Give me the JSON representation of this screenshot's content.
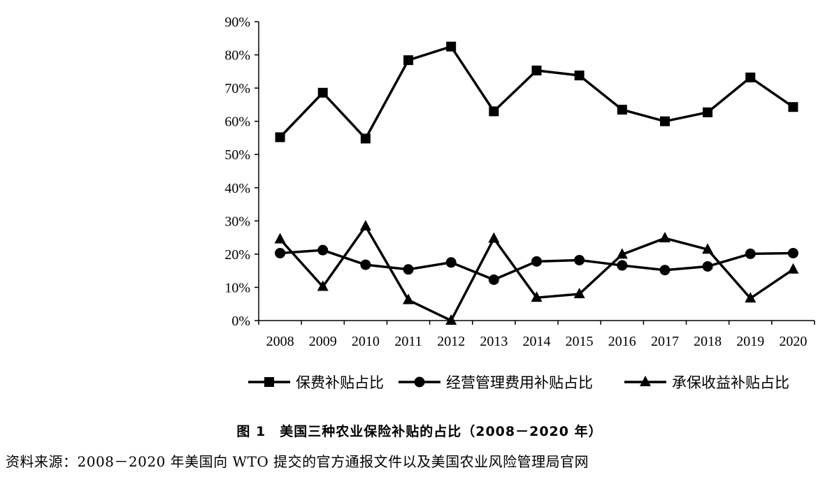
{
  "chart_data": {
    "type": "line",
    "categories": [
      "2008",
      "2009",
      "2010",
      "2011",
      "2012",
      "2013",
      "2014",
      "2015",
      "2016",
      "2017",
      "2018",
      "2019",
      "2020"
    ],
    "ylim": [
      0,
      90
    ],
    "yticks": [
      "0%",
      "10%",
      "20%",
      "30%",
      "40%",
      "50%",
      "60%",
      "70%",
      "80%",
      "90%"
    ],
    "grid": false,
    "legend_position": "bottom",
    "series": [
      {
        "name": "保费补贴占比",
        "marker": "square",
        "values": [
          55.2,
          68.6,
          54.8,
          78.4,
          82.5,
          63.0,
          75.3,
          73.8,
          63.5,
          60.0,
          62.7,
          73.2,
          64.3
        ]
      },
      {
        "name": "经营管理费用补贴占比",
        "marker": "circle",
        "values": [
          20.3,
          21.2,
          16.8,
          15.4,
          17.5,
          12.3,
          17.8,
          18.2,
          16.6,
          15.2,
          16.3,
          20.1,
          20.3
        ]
      },
      {
        "name": "承保收益补贴占比",
        "marker": "triangle",
        "values": [
          24.5,
          10.2,
          28.4,
          6.2,
          0.0,
          24.7,
          6.9,
          8.0,
          19.9,
          24.8,
          21.4,
          6.7,
          15.4
        ]
      }
    ]
  },
  "caption": "图 1　美国三种农业保险补贴的占比（2008－2020 年）",
  "source": "资料来源：2008－2020 年美国向 WTO 提交的官方通报文件以及美国农业风险管理局官网"
}
